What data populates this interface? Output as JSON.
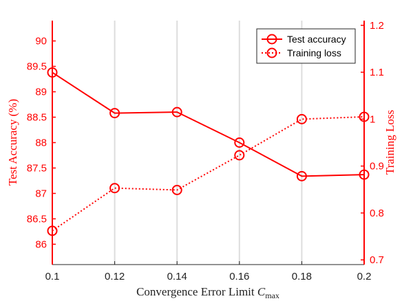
{
  "chart_data": {
    "type": "line",
    "x": [
      0.1,
      0.12,
      0.14,
      0.16,
      0.18,
      0.2
    ],
    "x_ticks": [
      "0.1",
      "0.12",
      "0.14",
      "0.16",
      "0.18",
      "0.2"
    ],
    "xlim": [
      0.1,
      0.2
    ],
    "xlabel": "Convergence Error Limit ",
    "xlabel_symbol": "C",
    "xlabel_subscript": "max",
    "left_axis": {
      "label": "Test Accuracy (%)",
      "ylim": [
        85.6,
        90.4
      ],
      "ticks": [
        "86",
        "86.5",
        "87",
        "87.5",
        "88",
        "88.5",
        "89",
        "89.5",
        "90"
      ]
    },
    "right_axis": {
      "label": "Training Loss",
      "ylim": [
        0.69,
        1.21
      ],
      "ticks": [
        "0.7",
        "0.8",
        "0.9",
        "1",
        "1.1",
        "1.2"
      ]
    },
    "series": [
      {
        "name": "Test accuracy",
        "axis": "left",
        "style": "solid",
        "values": [
          89.38,
          88.58,
          88.6,
          88.0,
          87.34,
          87.37
        ]
      },
      {
        "name": "Training loss",
        "axis": "right",
        "style": "dotted",
        "values": [
          0.762,
          0.853,
          0.849,
          0.923,
          1.0,
          1.005
        ]
      }
    ],
    "grid": "vertical",
    "legend_position": "top-right",
    "color": "#ff0000"
  }
}
